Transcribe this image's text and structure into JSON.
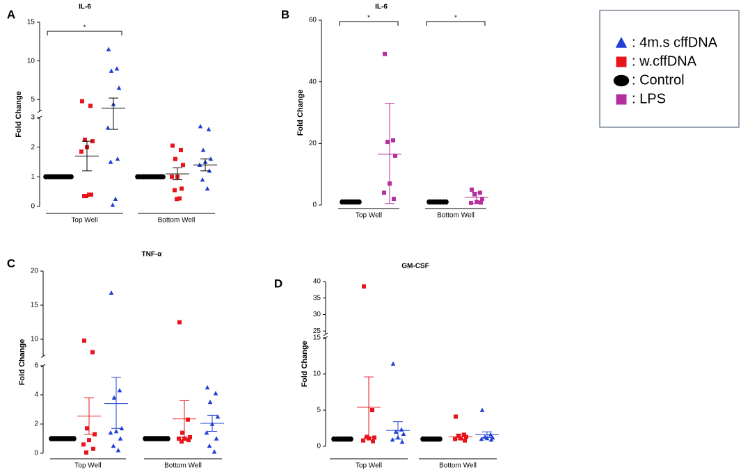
{
  "chart_data": [
    {
      "type": "dot",
      "letter": "A",
      "title": "IL-6",
      "ylabel": "Fold Change",
      "segments": [
        {
          "ylim": [
            0,
            3
          ],
          "yticks": [
            0,
            1,
            2,
            3
          ]
        },
        {
          "ylim": [
            3.5,
            15
          ],
          "yticks": [
            5,
            10,
            15
          ]
        }
      ],
      "groups": [
        {
          "marker": "circle",
          "color": "#000000",
          "line_color": "#000000",
          "values": [
            1,
            1,
            1,
            1,
            1,
            1,
            1,
            1,
            1,
            1
          ]
        },
        {
          "marker": "square",
          "color": "#e8141c",
          "line_color": "#000000",
          "values": [
            4.8,
            4.2,
            2.25,
            2.2,
            2.0,
            1.85,
            0.4,
            0.35,
            0.4,
            0.35
          ],
          "mean": 1.7,
          "err_low": 1.2,
          "err_high": 2.2
        },
        {
          "marker": "triangle",
          "color": "#1f3fd6",
          "line_color": "#000000",
          "values": [
            11.5,
            9,
            8.7,
            6.5,
            4.4,
            2.65,
            1.6,
            1.5,
            0.25,
            0.05
          ],
          "mean": 3.9,
          "err_low": 2.6,
          "err_high": 5.2
        },
        {
          "marker": "circle",
          "color": "#000000",
          "line_color": "#000000",
          "values": [
            1,
            1,
            1,
            1,
            1,
            1,
            1,
            1,
            1,
            1
          ]
        },
        {
          "marker": "square",
          "color": "#e8141c",
          "line_color": "#000000",
          "values": [
            2.05,
            1.9,
            1.6,
            1.4,
            1.0,
            1.0,
            0.6,
            0.55,
            0.27,
            0.25
          ],
          "mean": 1.1,
          "err_low": 0.9,
          "err_high": 1.3
        },
        {
          "marker": "triangle",
          "color": "#1f3fd6",
          "line_color": "#000000",
          "values": [
            2.7,
            2.6,
            1.9,
            1.6,
            1.5,
            1.4,
            1.2,
            0.9,
            0.6
          ],
          "mean": 1.4,
          "err_low": 1.2,
          "err_high": 1.6
        }
      ],
      "wells": [
        {
          "label": "Top Well",
          "groups": [
            0,
            2
          ]
        },
        {
          "label": "Bottom Well",
          "groups": [
            3,
            5
          ]
        }
      ],
      "brackets": [
        {
          "label": "*",
          "groups": [
            0,
            2
          ]
        }
      ]
    },
    {
      "type": "dot",
      "letter": "B",
      "title": "IL-6",
      "ylabel": "Fold Change",
      "segments": [
        {
          "ylim": [
            0,
            60
          ],
          "yticks": [
            0,
            20,
            40,
            60
          ]
        }
      ],
      "groups": [
        {
          "marker": "circle",
          "color": "#000000",
          "line_color": "#000000",
          "values": [
            1,
            1,
            1,
            1,
            1,
            1,
            1
          ]
        },
        {
          "marker": "square",
          "color": "#b5309e",
          "line_color": "#b5309e",
          "values": [
            49,
            21,
            20.5,
            16,
            7,
            4,
            2
          ],
          "mean": 16.5,
          "err_low": 0.5,
          "err_high": 33
        },
        {
          "marker": "circle",
          "color": "#000000",
          "line_color": "#000000",
          "values": [
            1,
            1,
            1,
            1,
            1,
            1,
            1
          ]
        },
        {
          "marker": "square",
          "color": "#b5309e",
          "line_color": "#b5309e",
          "values": [
            5,
            4,
            3.5,
            2,
            1,
            0.7,
            0.8
          ],
          "mean": 2.5,
          "err_low": 0.5,
          "err_high": 4.2
        }
      ],
      "wells": [
        {
          "label": "Top Well",
          "groups": [
            0,
            1
          ]
        },
        {
          "label": "Bottom Well",
          "groups": [
            2,
            3
          ]
        }
      ],
      "brackets": [
        {
          "label": "*",
          "groups": [
            0,
            1
          ]
        },
        {
          "label": "*",
          "groups": [
            2,
            3
          ]
        }
      ]
    },
    {
      "type": "dot",
      "letter": "C",
      "title": "TNF-α",
      "ylabel": "Fold Change",
      "segments": [
        {
          "ylim": [
            0,
            6
          ],
          "yticks": [
            0,
            2,
            4,
            6
          ]
        },
        {
          "ylim": [
            7.5,
            20
          ],
          "yticks": [
            10,
            15,
            20
          ]
        }
      ],
      "groups": [
        {
          "marker": "circle",
          "color": "#000000",
          "line_color": "#000000",
          "values": [
            1,
            1,
            1,
            1,
            1,
            1,
            1,
            1,
            1
          ]
        },
        {
          "marker": "square",
          "color": "#e8141c",
          "line_color": "#e8141c",
          "values": [
            9.8,
            8.1,
            1.7,
            1.3,
            0.9,
            0.6,
            0.3,
            0.05
          ],
          "mean": 2.55,
          "err_low": 1.3,
          "err_high": 3.8
        },
        {
          "marker": "triangle",
          "color": "#1f3fd6",
          "line_color": "#1f3fd6",
          "values": [
            16.8,
            4.3,
            3.8,
            1.7,
            1.5,
            1.4,
            1.0,
            0.5,
            0.2
          ],
          "mean": 3.4,
          "err_low": 1.7,
          "err_high": 5.2
        },
        {
          "marker": "circle",
          "color": "#000000",
          "line_color": "#000000",
          "values": [
            1,
            1,
            1,
            1,
            1,
            1,
            1,
            1,
            1
          ]
        },
        {
          "marker": "square",
          "color": "#e8141c",
          "line_color": "#e8141c",
          "values": [
            12.5,
            2.3,
            1.4,
            1.1,
            1.0,
            1.0,
            0.9,
            0.8
          ],
          "mean": 2.35,
          "err_low": 1.1,
          "err_high": 3.6
        },
        {
          "marker": "triangle",
          "color": "#1f3fd6",
          "line_color": "#1f3fd6",
          "values": [
            4.5,
            4.1,
            3.5,
            2.5,
            2.0,
            1.4,
            1.0,
            0.5,
            0.1
          ],
          "mean": 2.05,
          "err_low": 1.5,
          "err_high": 2.6
        }
      ],
      "wells": [
        {
          "label": "Top Well",
          "groups": [
            0,
            2
          ]
        },
        {
          "label": "Bottom Well",
          "groups": [
            3,
            5
          ]
        }
      ],
      "brackets": []
    },
    {
      "type": "dot",
      "letter": "D",
      "title": "GM-CSF",
      "ylabel": "Fold Change",
      "segments": [
        {
          "ylim": [
            0,
            15
          ],
          "yticks": [
            0,
            5,
            10,
            15
          ]
        },
        {
          "ylim": [
            24,
            40
          ],
          "yticks": [
            25,
            30,
            35,
            40
          ]
        }
      ],
      "groups": [
        {
          "marker": "circle",
          "color": "#000000",
          "line_color": "#000000",
          "values": [
            1,
            1,
            1,
            1,
            1,
            1,
            1
          ]
        },
        {
          "marker": "square",
          "color": "#e8141c",
          "line_color": "#e8141c",
          "values": [
            38.5,
            5,
            1.3,
            1.2,
            1.1,
            0.8,
            0.7
          ],
          "mean": 5.4,
          "err_low": 1.2,
          "err_high": 9.6
        },
        {
          "marker": "triangle",
          "color": "#1f3fd6",
          "line_color": "#1f3fd6",
          "values": [
            11.4,
            2.3,
            2.0,
            1.7,
            1.2,
            0.9,
            0.6
          ],
          "mean": 2.2,
          "err_low": 1.0,
          "err_high": 3.4
        },
        {
          "marker": "circle",
          "color": "#000000",
          "line_color": "#000000",
          "values": [
            1,
            1,
            1,
            1,
            1,
            1,
            1
          ]
        },
        {
          "marker": "square",
          "color": "#e8141c",
          "line_color": "#e8141c",
          "values": [
            4.1,
            1.6,
            1.4,
            1.3,
            1.1,
            1.0,
            0.8
          ],
          "mean": 1.3,
          "err_low": 0.9,
          "err_high": 1.7
        },
        {
          "marker": "triangle",
          "color": "#1f3fd6",
          "line_color": "#1f3fd6",
          "values": [
            5.0,
            1.6,
            1.3,
            1.2,
            1.1,
            1.0,
            0.9
          ],
          "mean": 1.6,
          "err_low": 1.2,
          "err_high": 2.0
        }
      ],
      "wells": [
        {
          "label": "Top Well",
          "groups": [
            0,
            2
          ]
        },
        {
          "label": "Bottom Well",
          "groups": [
            3,
            5
          ]
        }
      ],
      "brackets": []
    }
  ],
  "legend": [
    {
      "name": ": 4m.s cffDNA",
      "marker": "triangle",
      "color": "#1f3fd6"
    },
    {
      "name": ": w.cffDNA",
      "marker": "square",
      "color": "#e8141c"
    },
    {
      "name": ": Control",
      "marker": "ellipse",
      "color": "#000000"
    },
    {
      "name": ": LPS",
      "marker": "square",
      "color": "#b5309e"
    }
  ]
}
